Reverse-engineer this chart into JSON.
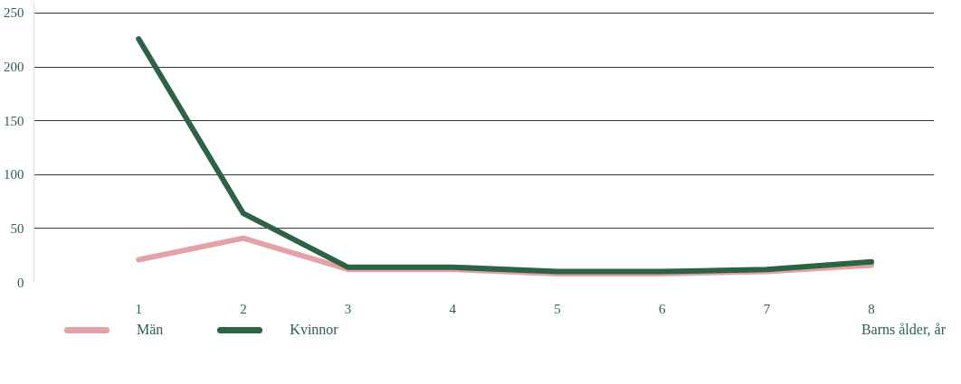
{
  "chart_data": {
    "type": "line",
    "xlabel": "Barns ålder, år",
    "categories": [
      "1",
      "2",
      "3",
      "4",
      "5",
      "6",
      "7",
      "8"
    ],
    "series": [
      {
        "name": "Män",
        "color": "#e3a3a6",
        "values": [
          21,
          41,
          12,
          12,
          8,
          8,
          10,
          16
        ]
      },
      {
        "name": "Kvinnor",
        "color": "#2b6344",
        "values": [
          226,
          64,
          14,
          14,
          10,
          10,
          12,
          19
        ]
      }
    ],
    "ylim": [
      0,
      260
    ],
    "yticks": [
      0,
      50,
      100,
      150,
      200,
      250
    ],
    "grid": "y",
    "legend": "bottom left",
    "marker": "none",
    "line_style": "solid"
  }
}
